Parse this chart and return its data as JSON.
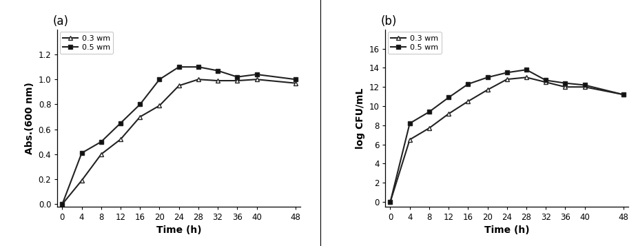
{
  "panel_a": {
    "label": "(a)",
    "xlabel": "Time (h)",
    "ylabel": "Abs.(600 nm)",
    "xlim": [
      -1,
      49
    ],
    "ylim": [
      -0.02,
      1.4
    ],
    "yticks": [
      0,
      0.2,
      0.4,
      0.6,
      0.8,
      1.0,
      1.2
    ],
    "xticks": [
      0,
      4,
      8,
      12,
      16,
      20,
      24,
      28,
      32,
      36,
      40,
      48
    ],
    "series": [
      {
        "label": "0.3 wm",
        "x": [
          0,
          4,
          8,
          12,
          16,
          20,
          24,
          28,
          32,
          36,
          40,
          48
        ],
        "y": [
          0,
          0.19,
          0.4,
          0.52,
          0.7,
          0.79,
          0.95,
          1.0,
          0.99,
          0.99,
          1.0,
          0.97
        ],
        "marker": "^",
        "markerfacecolor": "white",
        "linewidth": 1.5,
        "markersize": 5
      },
      {
        "label": "0.5 wm",
        "x": [
          0,
          4,
          8,
          12,
          16,
          20,
          24,
          28,
          32,
          36,
          40,
          48
        ],
        "y": [
          0,
          0.41,
          0.5,
          0.65,
          0.8,
          1.0,
          1.1,
          1.1,
          1.07,
          1.02,
          1.04,
          1.0
        ],
        "marker": "s",
        "markerfacecolor": "#111111",
        "linewidth": 1.5,
        "markersize": 5
      }
    ]
  },
  "panel_b": {
    "label": "(b)",
    "xlabel": "Time (h)",
    "ylabel": "log CFU/mL",
    "xlim": [
      -1,
      49
    ],
    "ylim": [
      -0.5,
      18
    ],
    "yticks": [
      0,
      2,
      4,
      6,
      8,
      10,
      12,
      14,
      16
    ],
    "xticks": [
      0,
      4,
      8,
      12,
      16,
      20,
      24,
      28,
      32,
      36,
      40,
      48
    ],
    "series": [
      {
        "label": "0.3 wm",
        "x": [
          0,
          4,
          8,
          12,
          16,
          20,
          24,
          28,
          32,
          36,
          40,
          48
        ],
        "y": [
          0,
          6.5,
          7.7,
          9.2,
          10.5,
          11.7,
          12.8,
          13.0,
          12.5,
          12.0,
          12.0,
          11.2
        ],
        "marker": "^",
        "markerfacecolor": "white",
        "linewidth": 1.5,
        "markersize": 5
      },
      {
        "label": "0.5 wm",
        "x": [
          0,
          4,
          8,
          12,
          16,
          20,
          24,
          28,
          32,
          36,
          40,
          48
        ],
        "y": [
          0,
          8.2,
          9.4,
          10.9,
          12.3,
          13.0,
          13.5,
          13.8,
          12.7,
          12.4,
          12.2,
          11.2
        ],
        "marker": "s",
        "markerfacecolor": "#111111",
        "linewidth": 1.5,
        "markersize": 5
      }
    ]
  },
  "line_color": "#222222",
  "background_color": "#ffffff",
  "xlabel_fontsize": 10,
  "ylabel_fontsize": 10,
  "tick_fontsize": 8.5,
  "legend_fontsize": 8,
  "label_fontsize": 12
}
